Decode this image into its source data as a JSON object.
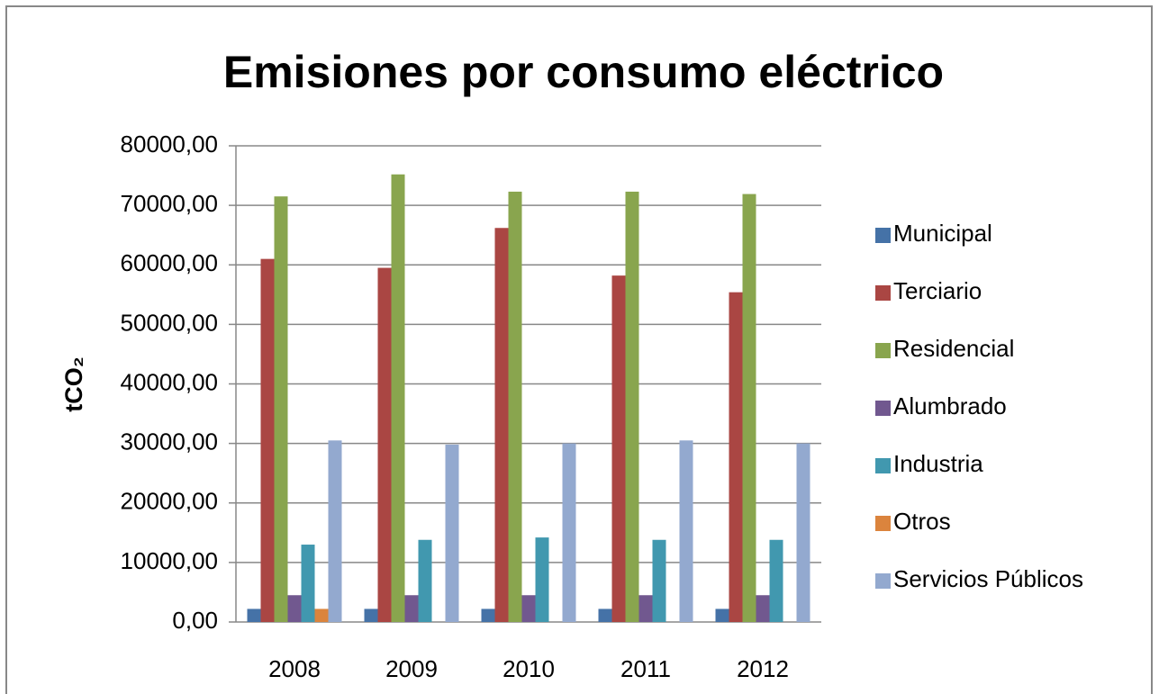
{
  "chart_data": {
    "type": "bar",
    "title": "Emisiones por consumo eléctrico",
    "y_label": "tCO₂",
    "categories": [
      "2008",
      "2009",
      "2010",
      "2011",
      "2012"
    ],
    "series": [
      {
        "name": "Municipal",
        "color": "#4572a7",
        "values": [
          2200,
          2200,
          2200,
          2200,
          2200
        ]
      },
      {
        "name": "Terciario",
        "color": "#aa4643",
        "values": [
          61000,
          59500,
          66200,
          58200,
          55400
        ]
      },
      {
        "name": "Residencial",
        "color": "#89a54e",
        "values": [
          71500,
          75200,
          72300,
          72300,
          71900
        ]
      },
      {
        "name": "Alumbrado",
        "color": "#71588f",
        "values": [
          4500,
          4500,
          4500,
          4500,
          4500
        ]
      },
      {
        "name": "Industria",
        "color": "#4198af",
        "values": [
          13000,
          13800,
          14200,
          13800,
          13800
        ]
      },
      {
        "name": "Otros",
        "color": "#db843d",
        "values": [
          2200,
          0,
          0,
          0,
          0
        ]
      },
      {
        "name": "Servicios Públicos",
        "color": "#93a9cf",
        "values": [
          30500,
          29800,
          30000,
          30500,
          30000
        ]
      }
    ],
    "ylim": [
      0,
      80000
    ],
    "yticks": [
      {
        "value": 0,
        "label": "0,00"
      },
      {
        "value": 10000,
        "label": "10000,00"
      },
      {
        "value": 20000,
        "label": "20000,00"
      },
      {
        "value": 30000,
        "label": "30000,00"
      },
      {
        "value": 40000,
        "label": "40000,00"
      },
      {
        "value": 50000,
        "label": "50000,00"
      },
      {
        "value": 60000,
        "label": "60000,00"
      },
      {
        "value": 70000,
        "label": "70000,00"
      },
      {
        "value": 80000,
        "label": "80000,00"
      }
    ],
    "grid": true,
    "legend": "right"
  }
}
